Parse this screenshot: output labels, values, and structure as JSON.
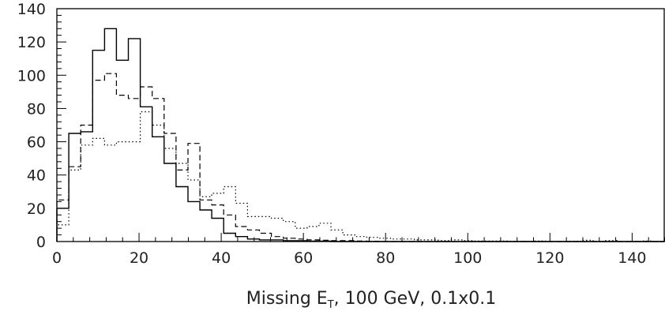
{
  "chart_data": {
    "type": "histogram",
    "xlabel": {
      "main": "Missing E",
      "sub": "T",
      "rest": ", 100 GeV, 0.1x0.1"
    },
    "xlim": [
      0,
      148
    ],
    "ylim": [
      0,
      140
    ],
    "xticks": [
      0,
      20,
      40,
      60,
      80,
      100,
      120,
      140
    ],
    "yticks": [
      0,
      20,
      40,
      60,
      80,
      100,
      120,
      140
    ],
    "grid": false,
    "legend": "none",
    "bin_width": 2.9,
    "series": [
      {
        "style": "solid",
        "values": [
          20,
          65,
          66,
          115,
          128,
          109,
          122,
          81,
          63,
          47,
          33,
          24,
          19,
          14,
          5,
          3,
          1.5,
          1,
          1,
          0.5,
          0.5,
          0.3,
          0.3,
          0,
          0,
          0,
          0,
          0,
          0,
          0,
          0,
          0,
          0,
          0,
          0,
          0,
          0,
          0,
          0,
          0,
          0,
          0,
          0,
          0,
          0,
          0,
          0,
          0,
          0,
          0,
          0
        ]
      },
      {
        "style": "dashed",
        "values": [
          25,
          45,
          70,
          97,
          101,
          88,
          86,
          93,
          86,
          65,
          43,
          59,
          25,
          22,
          16,
          9,
          7,
          5,
          3,
          2,
          1.5,
          1,
          0.8,
          0.5,
          0.5,
          0.3,
          0.2,
          0,
          0,
          0,
          0,
          0,
          0,
          0,
          0,
          0,
          0,
          0,
          0,
          0,
          0,
          0,
          0,
          0,
          0,
          0,
          0,
          0,
          0,
          0,
          0
        ]
      },
      {
        "style": "dotted",
        "values": [
          10,
          43,
          58,
          62,
          58,
          60,
          60,
          78,
          70,
          56,
          47,
          37,
          27,
          29,
          33,
          23,
          15,
          15,
          14,
          12,
          8,
          9,
          11,
          7,
          4,
          3,
          2.5,
          2,
          1.5,
          1.5,
          1,
          1,
          0.5,
          1,
          0.5,
          0.3,
          0.3,
          0.3,
          0.2,
          0.2,
          0.3,
          0,
          0,
          0.2,
          0.8,
          0,
          0.5,
          0,
          0,
          0.3,
          0
        ]
      }
    ]
  }
}
